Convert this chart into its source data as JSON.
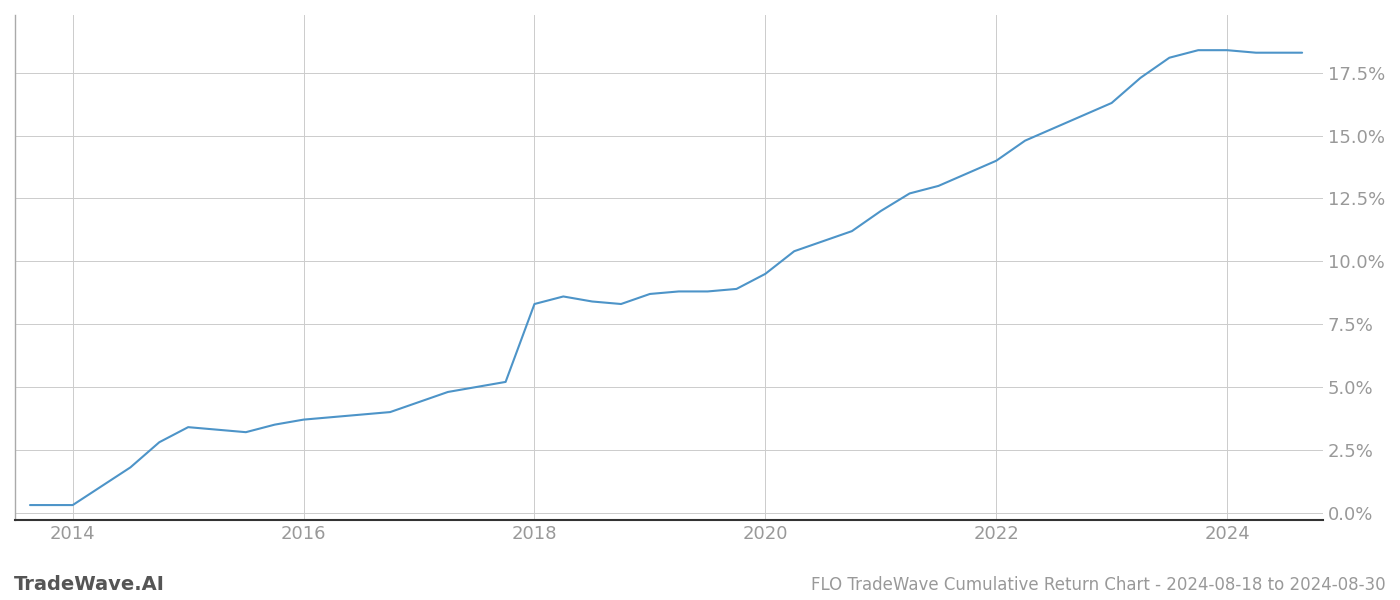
{
  "title": "FLO TradeWave Cumulative Return Chart - 2024-08-18 to 2024-08-30",
  "watermark": "TradeWave.AI",
  "line_color": "#4d94c8",
  "background_color": "#ffffff",
  "grid_color": "#cccccc",
  "x_values": [
    2013.63,
    2014.0,
    2014.5,
    2014.75,
    2015.0,
    2015.25,
    2015.5,
    2015.75,
    2016.0,
    2016.25,
    2016.5,
    2016.75,
    2017.0,
    2017.25,
    2017.5,
    2017.75,
    2018.0,
    2018.25,
    2018.5,
    2018.75,
    2019.0,
    2019.25,
    2019.5,
    2019.75,
    2020.0,
    2020.25,
    2020.5,
    2020.75,
    2021.0,
    2021.25,
    2021.5,
    2021.75,
    2022.0,
    2022.25,
    2022.5,
    2022.75,
    2023.0,
    2023.25,
    2023.5,
    2023.75,
    2024.0,
    2024.25,
    2024.5,
    2024.65
  ],
  "y_values": [
    0.003,
    0.003,
    0.018,
    0.028,
    0.034,
    0.033,
    0.032,
    0.035,
    0.037,
    0.038,
    0.039,
    0.04,
    0.044,
    0.048,
    0.05,
    0.052,
    0.083,
    0.086,
    0.084,
    0.083,
    0.087,
    0.088,
    0.088,
    0.089,
    0.095,
    0.104,
    0.108,
    0.112,
    0.12,
    0.127,
    0.13,
    0.135,
    0.14,
    0.148,
    0.153,
    0.158,
    0.163,
    0.173,
    0.181,
    0.184,
    0.184,
    0.183,
    0.183,
    0.183
  ],
  "xlim": [
    2013.5,
    2024.83
  ],
  "ylim": [
    -0.003,
    0.198
  ],
  "xticks": [
    2014,
    2016,
    2018,
    2020,
    2022,
    2024
  ],
  "yticks": [
    0.0,
    0.025,
    0.05,
    0.075,
    0.1,
    0.125,
    0.15,
    0.175
  ],
  "ytick_labels": [
    "0.0%",
    "2.5%",
    "5.0%",
    "7.5%",
    "10.0%",
    "12.5%",
    "15.0%",
    "17.5%"
  ],
  "line_width": 1.5,
  "tick_label_color": "#999999",
  "tick_fontsize": 13,
  "watermark_fontsize": 14,
  "title_fontsize": 12
}
